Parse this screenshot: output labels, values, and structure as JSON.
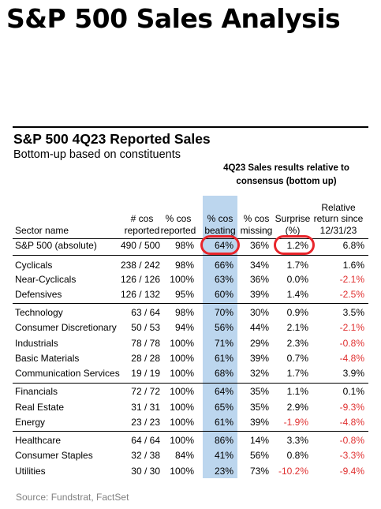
{
  "title": "S&P 500 Sales Analysis",
  "chart_data": {
    "type": "table",
    "title": "S&P 500 4Q23 Reported Sales",
    "subtitle": "Bottom-up based on constituents",
    "group_header": "4Q23 Sales results relative to consensus (bottom up)",
    "columns": [
      "Sector name",
      "# cos reported",
      "% cos reported",
      "% cos beating",
      "% cos missing",
      "Surprise (%)",
      "Relative return since 12/31/23"
    ],
    "highlighted_column": "% cos beating",
    "rows": [
      {
        "sector": "S&P 500 (absolute)",
        "cos_reported": "490 / 500",
        "pct_reported": "98%",
        "pct_beating": "64%",
        "pct_missing": "36%",
        "surprise": "1.2%",
        "relative_return": "6.8%"
      },
      {
        "sector": "Cyclicals",
        "cos_reported": "238 / 242",
        "pct_reported": "98%",
        "pct_beating": "66%",
        "pct_missing": "34%",
        "surprise": "1.7%",
        "relative_return": "1.6%"
      },
      {
        "sector": "Near-Cyclicals",
        "cos_reported": "126 / 126",
        "pct_reported": "100%",
        "pct_beating": "63%",
        "pct_missing": "36%",
        "surprise": "0.0%",
        "relative_return": "-2.1%"
      },
      {
        "sector": "Defensives",
        "cos_reported": "126 / 132",
        "pct_reported": "95%",
        "pct_beating": "60%",
        "pct_missing": "39%",
        "surprise": "1.4%",
        "relative_return": "-2.5%"
      },
      {
        "sector": "Technology",
        "cos_reported": "63 / 64",
        "pct_reported": "98%",
        "pct_beating": "70%",
        "pct_missing": "30%",
        "surprise": "0.9%",
        "relative_return": "3.5%"
      },
      {
        "sector": "Consumer Discretionary",
        "cos_reported": "50 / 53",
        "pct_reported": "94%",
        "pct_beating": "56%",
        "pct_missing": "44%",
        "surprise": "2.1%",
        "relative_return": "-2.1%"
      },
      {
        "sector": "Industrials",
        "cos_reported": "78 / 78",
        "pct_reported": "100%",
        "pct_beating": "71%",
        "pct_missing": "29%",
        "surprise": "2.3%",
        "relative_return": "-0.8%"
      },
      {
        "sector": "Basic Materials",
        "cos_reported": "28 / 28",
        "pct_reported": "100%",
        "pct_beating": "61%",
        "pct_missing": "39%",
        "surprise": "0.7%",
        "relative_return": "-4.8%"
      },
      {
        "sector": "Communication Services",
        "cos_reported": "19 / 19",
        "pct_reported": "100%",
        "pct_beating": "68%",
        "pct_missing": "32%",
        "surprise": "1.7%",
        "relative_return": "3.9%"
      },
      {
        "sector": "Financials",
        "cos_reported": "72 / 72",
        "pct_reported": "100%",
        "pct_beating": "64%",
        "pct_missing": "35%",
        "surprise": "1.1%",
        "relative_return": "0.1%"
      },
      {
        "sector": "Real Estate",
        "cos_reported": "31 / 31",
        "pct_reported": "100%",
        "pct_beating": "65%",
        "pct_missing": "35%",
        "surprise": "2.9%",
        "relative_return": "-9.3%"
      },
      {
        "sector": "Energy",
        "cos_reported": "23 / 23",
        "pct_reported": "100%",
        "pct_beating": "61%",
        "pct_missing": "39%",
        "surprise": "-1.9%",
        "relative_return": "-4.8%"
      },
      {
        "sector": "Healthcare",
        "cos_reported": "64 / 64",
        "pct_reported": "100%",
        "pct_beating": "86%",
        "pct_missing": "14%",
        "surprise": "3.3%",
        "relative_return": "-0.8%"
      },
      {
        "sector": "Consumer Staples",
        "cos_reported": "32 / 38",
        "pct_reported": "84%",
        "pct_beating": "41%",
        "pct_missing": "56%",
        "surprise": "0.8%",
        "relative_return": "-3.3%"
      },
      {
        "sector": "Utilities",
        "cos_reported": "30 / 30",
        "pct_reported": "100%",
        "pct_beating": "23%",
        "pct_missing": "73%",
        "surprise": "-10.2%",
        "relative_return": "-9.4%"
      }
    ],
    "circled_cells": [
      "S&P 500 (absolute) % cos beating",
      "S&P 500 (absolute) Surprise (%)"
    ],
    "source": "Source: Fundstrat, FactSet"
  },
  "colors": {
    "highlight_column": "#bcd6ee",
    "negative_text": "#e03030",
    "circle": "#e8252b",
    "source_text": "#808080"
  }
}
